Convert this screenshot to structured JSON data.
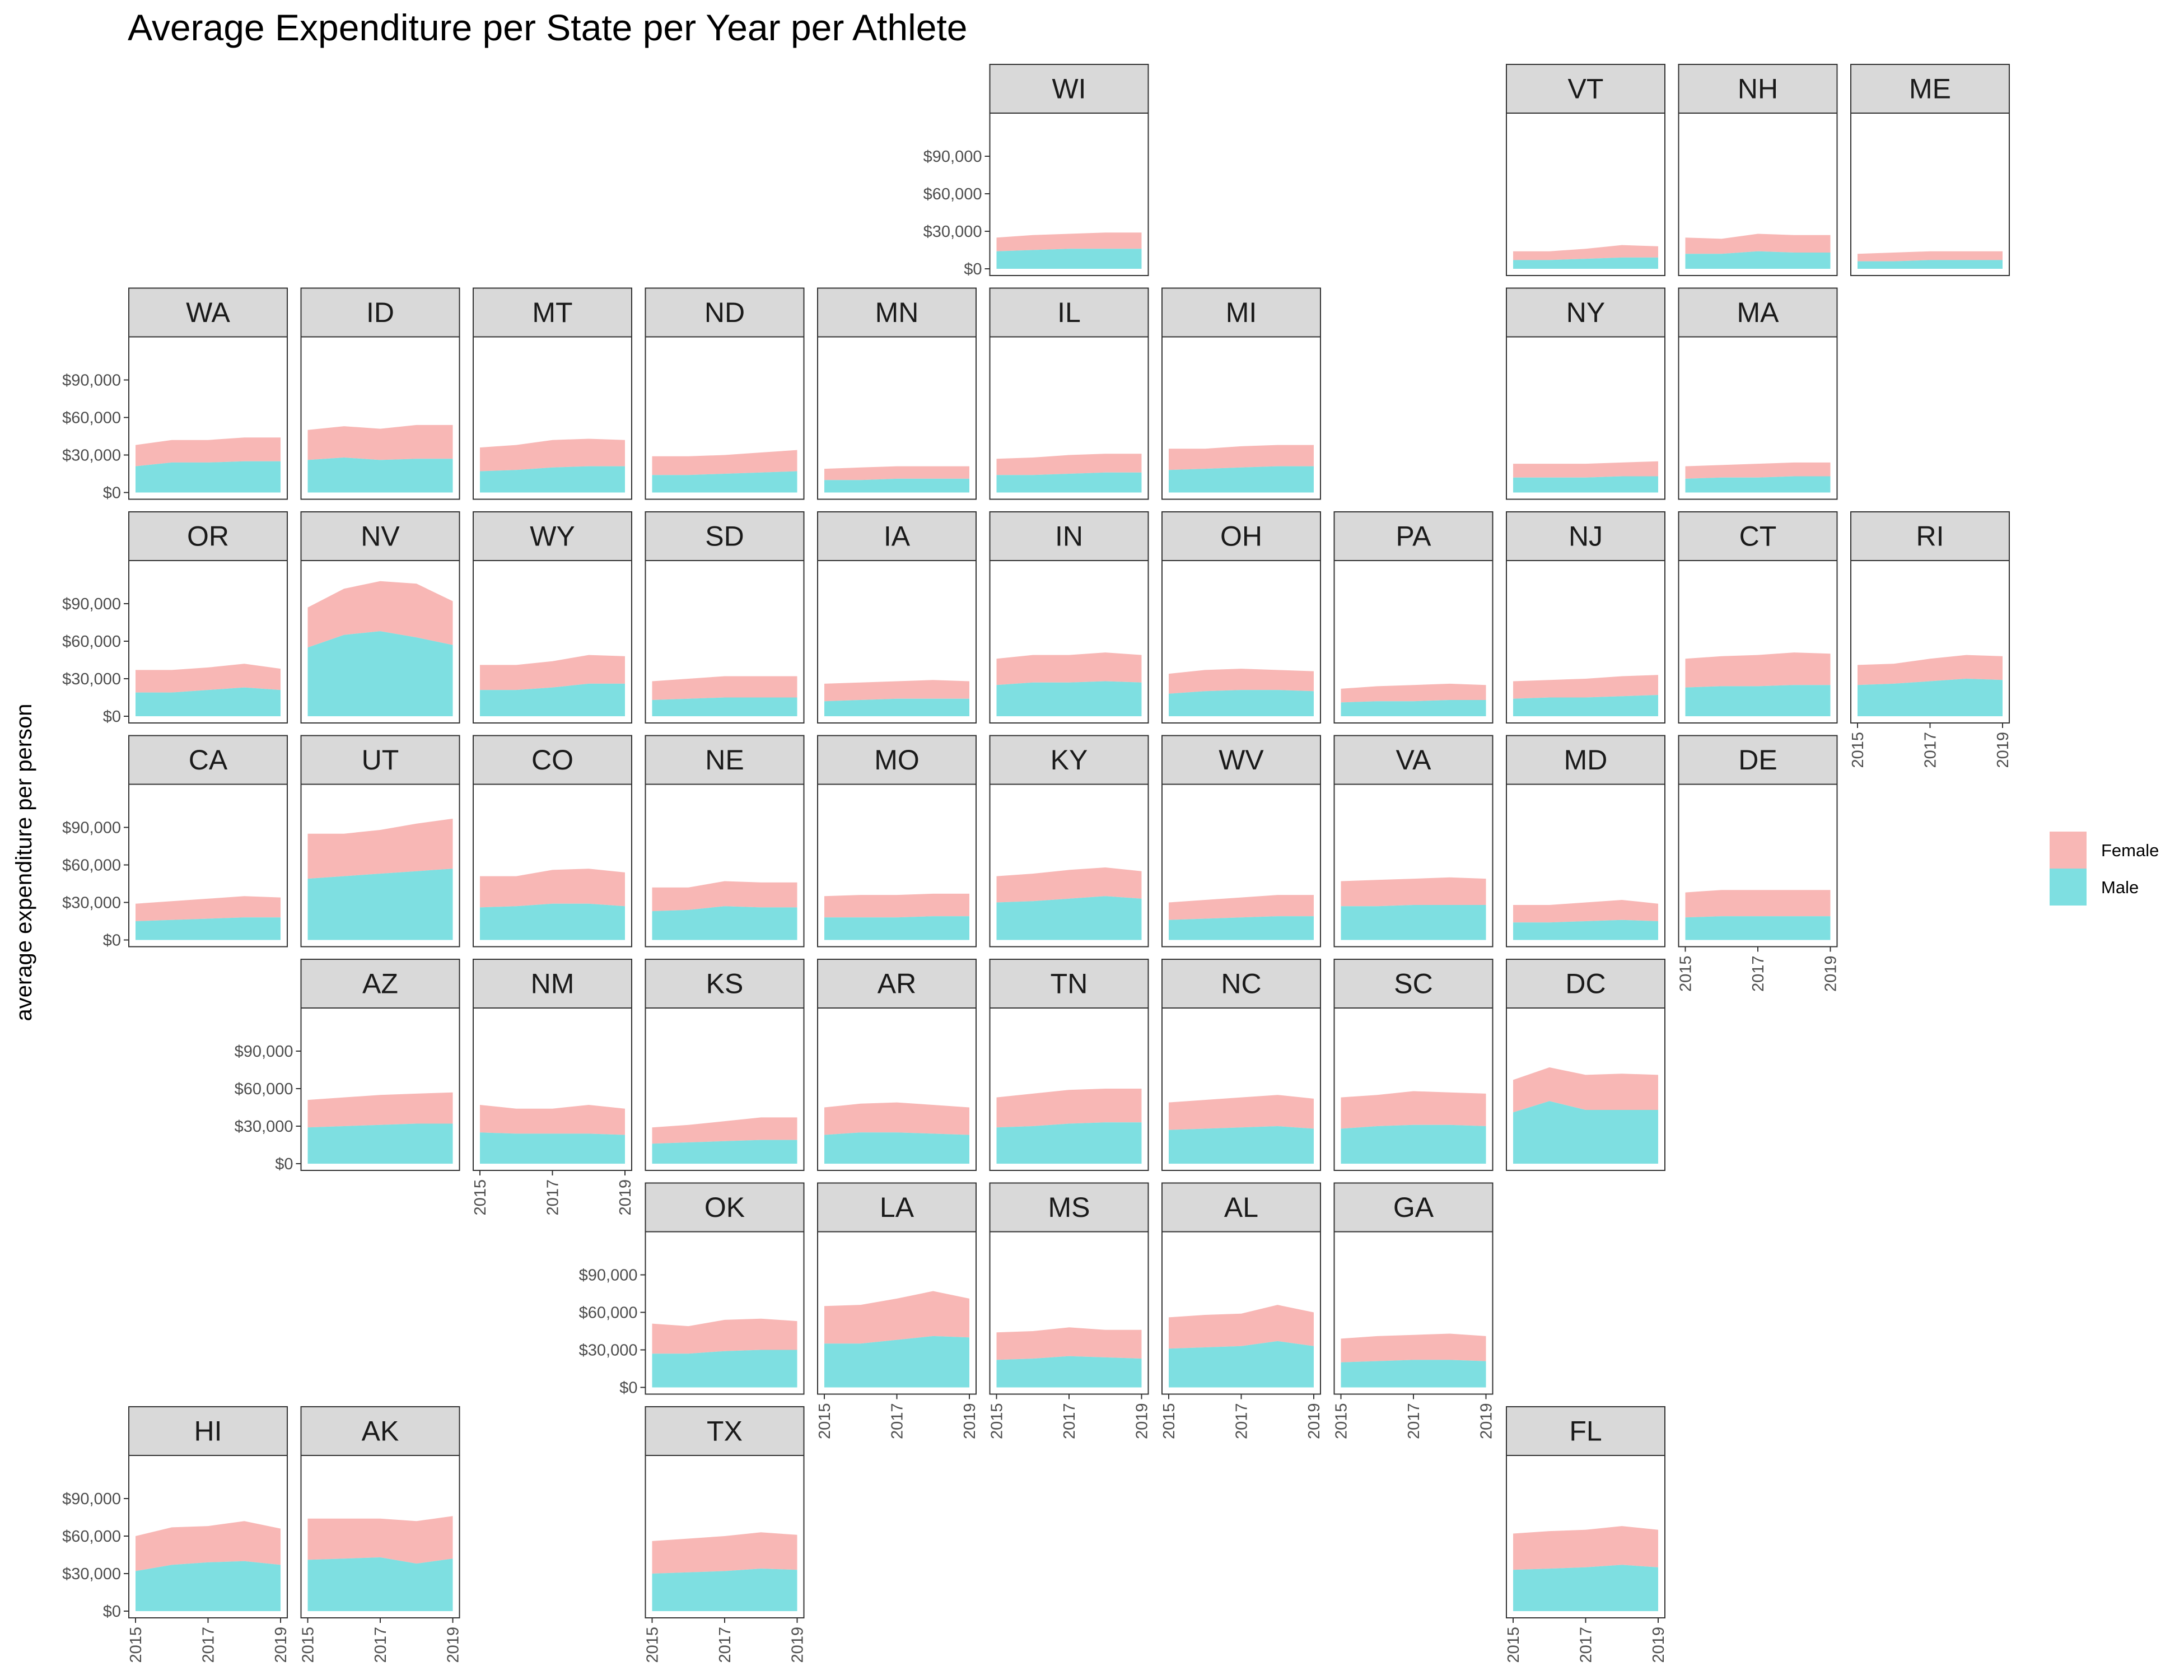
{
  "chart_data": {
    "type": "area",
    "title": "Average Expenditure per State per Year per Athlete",
    "ylabel": "average expenditure per person",
    "xlabel": "",
    "x": [
      2015,
      2016,
      2017,
      2018,
      2019
    ],
    "x_ticks": [
      2015,
      2017,
      2019
    ],
    "x_tick_labels": [
      "2015",
      "2017",
      "2019"
    ],
    "ylim": [
      0,
      120000
    ],
    "y_ticks": [
      0,
      30000,
      60000,
      90000
    ],
    "y_tick_labels": [
      "$0",
      "$30,000",
      "$60,000",
      "$90,000"
    ],
    "stacked": true,
    "grid": false,
    "legend_position": "right",
    "legend": [
      {
        "name": "Female",
        "color": "#F8B7B5"
      },
      {
        "name": "Male",
        "color": "#7EDFE1"
      }
    ],
    "panels": [
      {
        "state": "WI",
        "row": 0,
        "col": 5,
        "male": [
          14000,
          15000,
          16000,
          16000,
          16000
        ],
        "female": [
          11000,
          12000,
          12000,
          13000,
          13000
        ],
        "show_y": true,
        "show_x": false
      },
      {
        "state": "VT",
        "row": 0,
        "col": 8,
        "male": [
          7000,
          7000,
          8000,
          9000,
          9000
        ],
        "female": [
          7000,
          7000,
          8000,
          10000,
          9000
        ],
        "show_y": false,
        "show_x": false
      },
      {
        "state": "NH",
        "row": 0,
        "col": 9,
        "male": [
          12000,
          12000,
          14000,
          13000,
          13000
        ],
        "female": [
          13000,
          12000,
          14000,
          14000,
          14000
        ],
        "show_y": false,
        "show_x": false
      },
      {
        "state": "ME",
        "row": 0,
        "col": 10,
        "male": [
          6000,
          6000,
          7000,
          7000,
          7000
        ],
        "female": [
          6000,
          7000,
          7000,
          7000,
          7000
        ],
        "show_y": false,
        "show_x": false
      },
      {
        "state": "WA",
        "row": 1,
        "col": 0,
        "male": [
          21000,
          24000,
          24000,
          25000,
          25000
        ],
        "female": [
          17000,
          18000,
          18000,
          19000,
          19000
        ],
        "show_y": true,
        "show_x": false
      },
      {
        "state": "ID",
        "row": 1,
        "col": 1,
        "male": [
          26000,
          28000,
          26000,
          27000,
          27000
        ],
        "female": [
          24000,
          25000,
          25000,
          27000,
          27000
        ],
        "show_y": false,
        "show_x": false
      },
      {
        "state": "MT",
        "row": 1,
        "col": 2,
        "male": [
          17000,
          18000,
          20000,
          21000,
          21000
        ],
        "female": [
          19000,
          20000,
          22000,
          22000,
          21000
        ],
        "show_y": false,
        "show_x": false
      },
      {
        "state": "ND",
        "row": 1,
        "col": 3,
        "male": [
          14000,
          14000,
          15000,
          16000,
          17000
        ],
        "female": [
          15000,
          15000,
          15000,
          16000,
          17000
        ],
        "show_y": false,
        "show_x": false
      },
      {
        "state": "MN",
        "row": 1,
        "col": 4,
        "male": [
          10000,
          10000,
          11000,
          11000,
          11000
        ],
        "female": [
          9000,
          10000,
          10000,
          10000,
          10000
        ],
        "show_y": false,
        "show_x": false
      },
      {
        "state": "IL",
        "row": 1,
        "col": 5,
        "male": [
          14000,
          14000,
          15000,
          16000,
          16000
        ],
        "female": [
          13000,
          14000,
          15000,
          15000,
          15000
        ],
        "show_y": false,
        "show_x": false
      },
      {
        "state": "MI",
        "row": 1,
        "col": 6,
        "male": [
          18000,
          19000,
          20000,
          21000,
          21000
        ],
        "female": [
          17000,
          16000,
          17000,
          17000,
          17000
        ],
        "show_y": false,
        "show_x": false
      },
      {
        "state": "NY",
        "row": 1,
        "col": 8,
        "male": [
          12000,
          12000,
          12000,
          13000,
          13000
        ],
        "female": [
          11000,
          11000,
          11000,
          11000,
          12000
        ],
        "show_y": false,
        "show_x": false
      },
      {
        "state": "MA",
        "row": 1,
        "col": 9,
        "male": [
          11000,
          12000,
          12000,
          13000,
          13000
        ],
        "female": [
          10000,
          10000,
          11000,
          11000,
          11000
        ],
        "show_y": false,
        "show_x": false
      },
      {
        "state": "OR",
        "row": 2,
        "col": 0,
        "male": [
          19000,
          19000,
          21000,
          23000,
          21000
        ],
        "female": [
          18000,
          18000,
          18000,
          19000,
          17000
        ],
        "show_y": true,
        "show_x": false
      },
      {
        "state": "NV",
        "row": 2,
        "col": 1,
        "male": [
          55000,
          65000,
          68000,
          63000,
          57000
        ],
        "female": [
          32000,
          37000,
          40000,
          43000,
          35000
        ],
        "show_y": false,
        "show_x": false
      },
      {
        "state": "WY",
        "row": 2,
        "col": 2,
        "male": [
          21000,
          21000,
          23000,
          26000,
          26000
        ],
        "female": [
          20000,
          20000,
          21000,
          23000,
          22000
        ],
        "show_y": false,
        "show_x": false
      },
      {
        "state": "SD",
        "row": 2,
        "col": 3,
        "male": [
          13000,
          14000,
          15000,
          15000,
          15000
        ],
        "female": [
          15000,
          16000,
          17000,
          17000,
          17000
        ],
        "show_y": false,
        "show_x": false
      },
      {
        "state": "IA",
        "row": 2,
        "col": 4,
        "male": [
          12000,
          13000,
          14000,
          14000,
          14000
        ],
        "female": [
          14000,
          14000,
          14000,
          15000,
          14000
        ],
        "show_y": false,
        "show_x": false
      },
      {
        "state": "IN",
        "row": 2,
        "col": 5,
        "male": [
          25000,
          27000,
          27000,
          28000,
          27000
        ],
        "female": [
          21000,
          22000,
          22000,
          23000,
          22000
        ],
        "show_y": false,
        "show_x": false
      },
      {
        "state": "OH",
        "row": 2,
        "col": 6,
        "male": [
          18000,
          20000,
          21000,
          21000,
          20000
        ],
        "female": [
          16000,
          17000,
          17000,
          16000,
          16000
        ],
        "show_y": false,
        "show_x": false
      },
      {
        "state": "PA",
        "row": 2,
        "col": 7,
        "male": [
          11000,
          12000,
          12000,
          13000,
          13000
        ],
        "female": [
          11000,
          12000,
          13000,
          13000,
          12000
        ],
        "show_y": false,
        "show_x": false
      },
      {
        "state": "NJ",
        "row": 2,
        "col": 8,
        "male": [
          14000,
          15000,
          15000,
          16000,
          17000
        ],
        "female": [
          14000,
          14000,
          15000,
          16000,
          16000
        ],
        "show_y": false,
        "show_x": false
      },
      {
        "state": "CT",
        "row": 2,
        "col": 9,
        "male": [
          23000,
          24000,
          24000,
          25000,
          25000
        ],
        "female": [
          23000,
          24000,
          25000,
          26000,
          25000
        ],
        "show_y": false,
        "show_x": false
      },
      {
        "state": "RI",
        "row": 2,
        "col": 10,
        "male": [
          25000,
          26000,
          28000,
          30000,
          29000
        ],
        "female": [
          16000,
          16000,
          18000,
          19000,
          19000
        ],
        "show_y": false,
        "show_x": true
      },
      {
        "state": "CA",
        "row": 3,
        "col": 0,
        "male": [
          15000,
          16000,
          17000,
          18000,
          18000
        ],
        "female": [
          14000,
          15000,
          16000,
          17000,
          16000
        ],
        "show_y": true,
        "show_x": false
      },
      {
        "state": "UT",
        "row": 3,
        "col": 1,
        "male": [
          49000,
          51000,
          53000,
          55000,
          57000
        ],
        "female": [
          36000,
          34000,
          35000,
          38000,
          40000
        ],
        "show_y": false,
        "show_x": false
      },
      {
        "state": "CO",
        "row": 3,
        "col": 2,
        "male": [
          26000,
          27000,
          29000,
          29000,
          27000
        ],
        "female": [
          25000,
          24000,
          27000,
          28000,
          27000
        ],
        "show_y": false,
        "show_x": false
      },
      {
        "state": "NE",
        "row": 3,
        "col": 3,
        "male": [
          23000,
          24000,
          27000,
          26000,
          26000
        ],
        "female": [
          19000,
          18000,
          20000,
          20000,
          20000
        ],
        "show_y": false,
        "show_x": false
      },
      {
        "state": "MO",
        "row": 3,
        "col": 4,
        "male": [
          18000,
          18000,
          18000,
          19000,
          19000
        ],
        "female": [
          17000,
          18000,
          18000,
          18000,
          18000
        ],
        "show_y": false,
        "show_x": false
      },
      {
        "state": "KY",
        "row": 3,
        "col": 5,
        "male": [
          30000,
          31000,
          33000,
          35000,
          33000
        ],
        "female": [
          21000,
          22000,
          23000,
          23000,
          22000
        ],
        "show_y": false,
        "show_x": false
      },
      {
        "state": "WV",
        "row": 3,
        "col": 6,
        "male": [
          16000,
          17000,
          18000,
          19000,
          19000
        ],
        "female": [
          14000,
          15000,
          16000,
          17000,
          17000
        ],
        "show_y": false,
        "show_x": false
      },
      {
        "state": "VA",
        "row": 3,
        "col": 7,
        "male": [
          27000,
          27000,
          28000,
          28000,
          28000
        ],
        "female": [
          20000,
          21000,
          21000,
          22000,
          21000
        ],
        "show_y": false,
        "show_x": false
      },
      {
        "state": "MD",
        "row": 3,
        "col": 8,
        "male": [
          14000,
          14000,
          15000,
          16000,
          15000
        ],
        "female": [
          14000,
          14000,
          15000,
          16000,
          14000
        ],
        "show_y": false,
        "show_x": false
      },
      {
        "state": "DE",
        "row": 3,
        "col": 9,
        "male": [
          18000,
          19000,
          19000,
          19000,
          19000
        ],
        "female": [
          20000,
          21000,
          21000,
          21000,
          21000
        ],
        "show_y": false,
        "show_x": true
      },
      {
        "state": "AZ",
        "row": 4,
        "col": 1,
        "male": [
          29000,
          30000,
          31000,
          32000,
          32000
        ],
        "female": [
          22000,
          23000,
          24000,
          24000,
          25000
        ],
        "show_y": true,
        "show_x": false
      },
      {
        "state": "NM",
        "row": 4,
        "col": 2,
        "male": [
          25000,
          24000,
          24000,
          24000,
          23000
        ],
        "female": [
          22000,
          20000,
          20000,
          23000,
          21000
        ],
        "show_y": false,
        "show_x": true
      },
      {
        "state": "KS",
        "row": 4,
        "col": 3,
        "male": [
          16000,
          17000,
          18000,
          19000,
          19000
        ],
        "female": [
          13000,
          14000,
          16000,
          18000,
          18000
        ],
        "show_y": false,
        "show_x": false
      },
      {
        "state": "AR",
        "row": 4,
        "col": 4,
        "male": [
          23000,
          25000,
          25000,
          24000,
          23000
        ],
        "female": [
          22000,
          23000,
          24000,
          23000,
          22000
        ],
        "show_y": false,
        "show_x": false
      },
      {
        "state": "TN",
        "row": 4,
        "col": 5,
        "male": [
          29000,
          30000,
          32000,
          33000,
          33000
        ],
        "female": [
          24000,
          26000,
          27000,
          27000,
          27000
        ],
        "show_y": false,
        "show_x": false
      },
      {
        "state": "NC",
        "row": 4,
        "col": 6,
        "male": [
          27000,
          28000,
          29000,
          30000,
          28000
        ],
        "female": [
          22000,
          23000,
          24000,
          25000,
          24000
        ],
        "show_y": false,
        "show_x": false
      },
      {
        "state": "SC",
        "row": 4,
        "col": 7,
        "male": [
          28000,
          30000,
          31000,
          31000,
          30000
        ],
        "female": [
          25000,
          25000,
          27000,
          26000,
          26000
        ],
        "show_y": false,
        "show_x": false
      },
      {
        "state": "DC",
        "row": 4,
        "col": 8,
        "male": [
          41000,
          50000,
          43000,
          43000,
          43000
        ],
        "female": [
          26000,
          27000,
          28000,
          29000,
          28000
        ],
        "show_y": false,
        "show_x": false
      },
      {
        "state": "OK",
        "row": 5,
        "col": 3,
        "male": [
          27000,
          27000,
          29000,
          30000,
          30000
        ],
        "female": [
          24000,
          22000,
          25000,
          25000,
          23000
        ],
        "show_y": true,
        "show_x": false
      },
      {
        "state": "LA",
        "row": 5,
        "col": 4,
        "male": [
          35000,
          35000,
          38000,
          41000,
          40000
        ],
        "female": [
          30000,
          31000,
          33000,
          36000,
          31000
        ],
        "show_y": false,
        "show_x": true
      },
      {
        "state": "MS",
        "row": 5,
        "col": 5,
        "male": [
          22000,
          23000,
          25000,
          24000,
          23000
        ],
        "female": [
          22000,
          22000,
          23000,
          22000,
          23000
        ],
        "show_y": false,
        "show_x": true
      },
      {
        "state": "AL",
        "row": 5,
        "col": 6,
        "male": [
          31000,
          32000,
          33000,
          37000,
          33000
        ],
        "female": [
          25000,
          26000,
          26000,
          29000,
          27000
        ],
        "show_y": false,
        "show_x": true
      },
      {
        "state": "GA",
        "row": 5,
        "col": 7,
        "male": [
          20000,
          21000,
          22000,
          22000,
          21000
        ],
        "female": [
          19000,
          20000,
          20000,
          21000,
          20000
        ],
        "show_y": false,
        "show_x": true
      },
      {
        "state": "HI",
        "row": 6,
        "col": 0,
        "male": [
          32000,
          37000,
          39000,
          40000,
          37000
        ],
        "female": [
          28000,
          30000,
          29000,
          32000,
          29000
        ],
        "show_y": true,
        "show_x": true
      },
      {
        "state": "AK",
        "row": 6,
        "col": 1,
        "male": [
          41000,
          42000,
          43000,
          38000,
          42000
        ],
        "female": [
          33000,
          32000,
          31000,
          34000,
          34000
        ],
        "show_y": false,
        "show_x": true
      },
      {
        "state": "TX",
        "row": 6,
        "col": 3,
        "male": [
          30000,
          31000,
          32000,
          34000,
          33000
        ],
        "female": [
          26000,
          27000,
          28000,
          29000,
          28000
        ],
        "show_y": false,
        "show_x": true
      },
      {
        "state": "FL",
        "row": 6,
        "col": 8,
        "male": [
          33000,
          34000,
          35000,
          37000,
          35000
        ],
        "female": [
          29000,
          30000,
          30000,
          31000,
          30000
        ],
        "show_y": false,
        "show_x": true
      }
    ]
  }
}
